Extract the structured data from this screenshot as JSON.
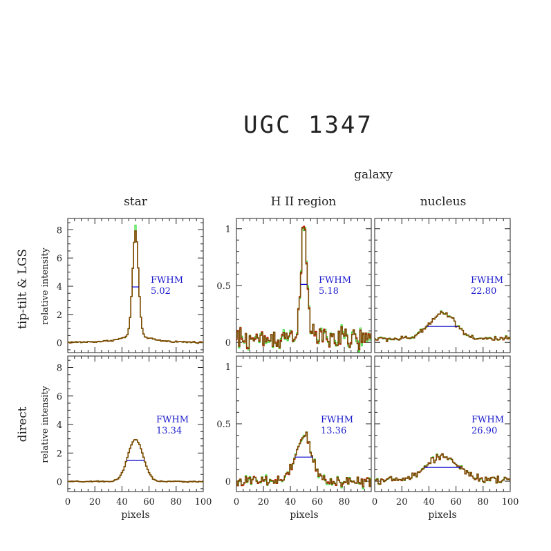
{
  "figure": {
    "title": "UGC 1347",
    "galaxy_label": "galaxy",
    "column_titles": [
      "star",
      "H II region",
      "nucleus"
    ],
    "row_titles": [
      "tip-tilt & LGS",
      "direct"
    ],
    "ylabel": "relative intensity",
    "xlabel": "pixels"
  },
  "colors": {
    "profile_main": "#7a4a00",
    "profile_red": "#cc0000",
    "profile_green": "#33dd33",
    "fwhm_line": "#0000cc",
    "fwhm_text": "#1a1acc",
    "axis": "#222222"
  },
  "chart_data": [
    {
      "type": "line",
      "id": "tt_star",
      "row": "tip-tilt & LGS",
      "column": "star",
      "xlim": [
        0,
        100
      ],
      "ylim": [
        -0.7,
        8.8
      ],
      "xticks": [
        0,
        20,
        40,
        60,
        80,
        100
      ],
      "yticks": [
        0,
        2,
        4,
        6,
        8
      ],
      "profile": {
        "center": 50,
        "peak": 7.9,
        "fwhm": 5.02,
        "base": 0.0,
        "noise": 0.04,
        "green_spike": 8.3
      },
      "fwhm_level": 3.95,
      "annotation": [
        "FWHM",
        "5.02"
      ]
    },
    {
      "type": "line",
      "id": "tt_hii",
      "row": "tip-tilt & LGS",
      "column": "H II region",
      "xlim": [
        0,
        100
      ],
      "ylim": [
        -0.09,
        1.09
      ],
      "xticks": [
        0,
        20,
        40,
        60,
        80
      ],
      "yticks": [
        0,
        0.5,
        1
      ],
      "profile": {
        "center": 50,
        "peak": 0.99,
        "fwhm": 5.18,
        "base": 0.02,
        "noise": 0.07,
        "green_spike": 0.97
      },
      "fwhm_level": 0.51,
      "annotation": [
        "FWHM",
        "5.18"
      ]
    },
    {
      "type": "line",
      "id": "tt_nuc",
      "row": "tip-tilt & LGS",
      "column": "nucleus",
      "xlim": [
        0,
        100
      ],
      "ylim": [
        -0.09,
        1.09
      ],
      "xticks": [
        0,
        20,
        40,
        60,
        80,
        100
      ],
      "yticks": [],
      "profile": {
        "center": 50,
        "peak": 0.26,
        "fwhm": 22.8,
        "base": 0.03,
        "noise": 0.015
      },
      "fwhm_level": 0.14,
      "annotation": [
        "FWHM",
        "22.80"
      ]
    },
    {
      "type": "line",
      "id": "dir_star",
      "row": "direct",
      "column": "star",
      "xlim": [
        0,
        100
      ],
      "ylim": [
        -0.7,
        8.8
      ],
      "xticks": [
        0,
        20,
        40,
        60,
        80,
        100
      ],
      "yticks": [
        0,
        2,
        4,
        6,
        8
      ],
      "profile": {
        "center": 50,
        "peak": 2.95,
        "fwhm": 13.34,
        "base": 0.0,
        "noise": 0.03
      },
      "fwhm_level": 1.48,
      "annotation": [
        "FWHM",
        "13.34"
      ]
    },
    {
      "type": "line",
      "id": "dir_hii",
      "row": "direct",
      "column": "H II region",
      "xlim": [
        0,
        100
      ],
      "ylim": [
        -0.09,
        1.09
      ],
      "xticks": [
        0,
        20,
        40,
        60,
        80
      ],
      "yticks": [
        0,
        0.5,
        1
      ],
      "profile": {
        "center": 50,
        "peak": 0.4,
        "fwhm": 13.36,
        "base": 0.0,
        "noise": 0.035
      },
      "fwhm_level": 0.21,
      "annotation": [
        "FWHM",
        "13.36"
      ]
    },
    {
      "type": "line",
      "id": "dir_nuc",
      "row": "direct",
      "column": "nucleus",
      "xlim": [
        0,
        100
      ],
      "ylim": [
        -0.09,
        1.09
      ],
      "xticks": [
        0,
        20,
        40,
        60,
        80,
        100
      ],
      "yticks": [],
      "profile": {
        "center": 50,
        "peak": 0.22,
        "fwhm": 26.9,
        "base": 0.01,
        "noise": 0.02
      },
      "fwhm_level": 0.12,
      "annotation": [
        "FWHM",
        "26.90"
      ]
    }
  ]
}
